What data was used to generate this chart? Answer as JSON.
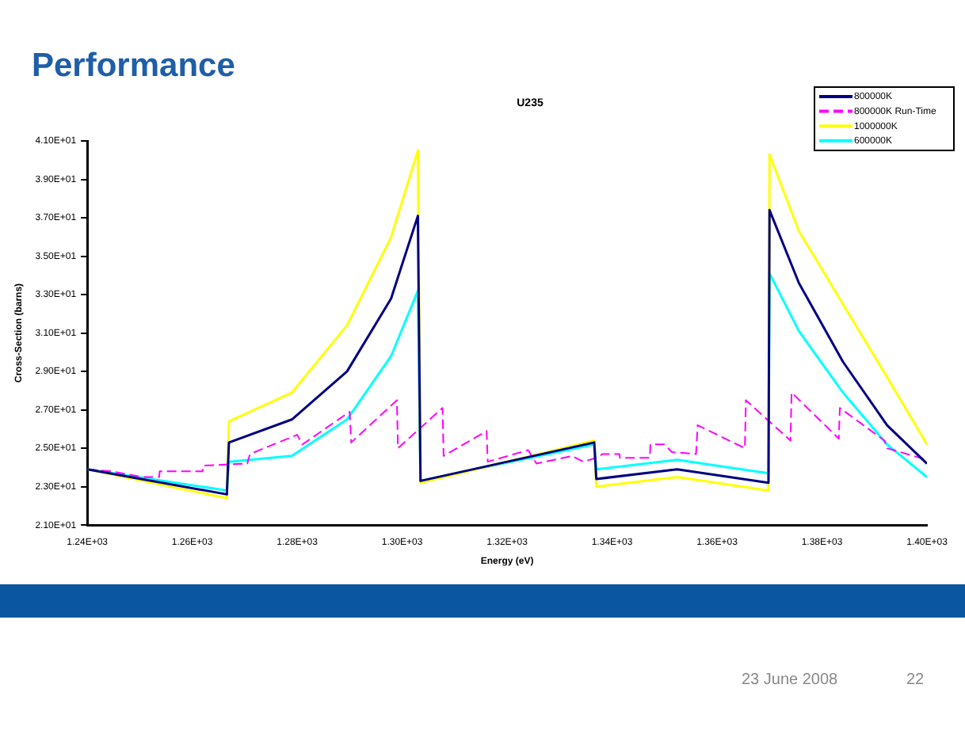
{
  "chart_data": {
    "type": "line",
    "title": "Performance",
    "subtitle": "U235",
    "xlabel": "Energy (eV)",
    "ylabel": "Cross-Section (barns)",
    "xlim": [
      1240,
      1400
    ],
    "xticks": [
      {
        "value": 1240,
        "label": "1.24E+03"
      },
      {
        "value": 1260,
        "label": "1.26E+03"
      },
      {
        "value": 1280,
        "label": "1.28E+03"
      },
      {
        "value": 1300,
        "label": "1.30E+03"
      },
      {
        "value": 1320,
        "label": "1.32E+03"
      },
      {
        "value": 1340,
        "label": "1.34E+03"
      },
      {
        "value": 1360,
        "label": "1.36E+03"
      },
      {
        "value": 1380,
        "label": "1.38E+03"
      },
      {
        "value": 1400,
        "label": "1.40E+03"
      }
    ],
    "ylim": [
      21,
      41
    ],
    "yticks": [
      {
        "value": 21,
        "label": "2.10E+01"
      },
      {
        "value": 23,
        "label": "2.30E+01"
      },
      {
        "value": 25,
        "label": "2.50E+01"
      },
      {
        "value": 27,
        "label": "2.70E+01"
      },
      {
        "value": 29,
        "label": "2.90E+01"
      },
      {
        "value": 31,
        "label": "3.10E+01"
      },
      {
        "value": 33,
        "label": "3.30E+01"
      },
      {
        "value": 35,
        "label": "3.50E+01"
      },
      {
        "value": 37,
        "label": "3.70E+01"
      },
      {
        "value": 39,
        "label": "3.90E+01"
      },
      {
        "value": 41,
        "label": "4.10E+01"
      }
    ],
    "grid": false,
    "legend": "top right",
    "marker": "none",
    "series": [
      {
        "name": "800000K",
        "color": "#000080",
        "line_style": "solid",
        "x": [
          1240,
          1266.6,
          1267,
          1279,
          1289.5,
          1297.9,
          1303,
          1303.5,
          1336.6,
          1337,
          1352.4,
          1369.8,
          1370,
          1375.6,
          1384,
          1392.4,
          1400
        ],
        "values": [
          23.9,
          22.6,
          25.3,
          26.5,
          29.0,
          32.8,
          37.1,
          23.3,
          25.3,
          23.4,
          23.9,
          23.2,
          37.4,
          33.6,
          29.5,
          26.2,
          24.2
        ]
      },
      {
        "name": "800000K Run-Time",
        "color": "#ff00ff",
        "line_style": "dashed",
        "x": [
          1240,
          1244.7,
          1250.5,
          1253.7,
          1253.8,
          1262,
          1262.1,
          1270.5,
          1271,
          1280,
          1281,
          1290,
          1290.3,
          1299,
          1299.2,
          1307.7,
          1307.9,
          1316.1,
          1316.3,
          1324,
          1325.6,
          1332.4,
          1334.5,
          1337,
          1338.2,
          1341.4,
          1341.5,
          1347.2,
          1347.3,
          1350,
          1351.4,
          1356,
          1356.3,
          1365.3,
          1365.5,
          1374,
          1374.2,
          1383.2,
          1383.4,
          1391.9,
          1392.4,
          1400
        ],
        "values": [
          23.9,
          23.8,
          23.5,
          23.5,
          23.8,
          23.8,
          24.1,
          24.2,
          24.7,
          25.7,
          25.2,
          26.9,
          25.3,
          27.5,
          25.0,
          27.1,
          24.6,
          25.9,
          24.3,
          24.9,
          24.2,
          24.6,
          24.3,
          24.5,
          24.7,
          24.7,
          24.5,
          24.5,
          25.2,
          25.2,
          24.8,
          24.7,
          26.2,
          25.0,
          27.5,
          25.4,
          27.9,
          25.5,
          27.1,
          25.4,
          25.0,
          24.4
        ]
      },
      {
        "name": "1000000K",
        "color": "#ffff00",
        "line_style": "solid",
        "x": [
          1240,
          1266.6,
          1267,
          1279,
          1289.5,
          1297.9,
          1303,
          1303.5,
          1336.6,
          1337,
          1352.4,
          1369.8,
          1370,
          1375.6,
          1384,
          1392.4,
          1400
        ],
        "values": [
          23.9,
          22.4,
          26.4,
          27.9,
          31.4,
          36.0,
          40.5,
          23.2,
          25.4,
          23.0,
          23.5,
          22.8,
          40.3,
          36.3,
          32.5,
          28.7,
          25.2
        ]
      },
      {
        "name": "600000K",
        "color": "#00ffff",
        "line_style": "solid",
        "x": [
          1240,
          1266.6,
          1267,
          1279,
          1289.5,
          1297.9,
          1303,
          1303.5,
          1336.6,
          1337,
          1352.4,
          1369.8,
          1370,
          1375.6,
          1384,
          1392.4,
          1400
        ],
        "values": [
          23.9,
          22.8,
          24.3,
          24.6,
          26.5,
          29.8,
          33.2,
          23.3,
          25.2,
          23.9,
          24.4,
          23.7,
          34.1,
          31.1,
          27.9,
          25.2,
          23.5
        ]
      }
    ],
    "annotations": [
      "23 June 2008",
      "22"
    ]
  }
}
